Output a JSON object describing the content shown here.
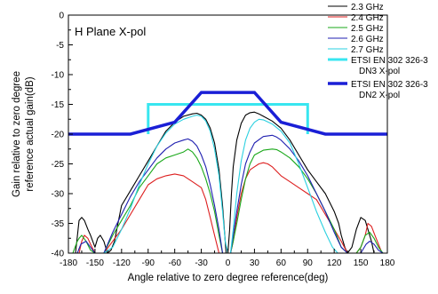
{
  "chart_data": {
    "type": "line",
    "annotation": "H Plane X-pol",
    "xlabel": "Angle relative to zero degree reference(deg)",
    "ylabel_lines": [
      "Gain relative to zero degree",
      "reference actual gain(dB)"
    ],
    "xlim": [
      -180,
      180
    ],
    "ylim": [
      -40,
      0
    ],
    "xticks": [
      -180,
      -150,
      -120,
      -90,
      -60,
      -30,
      0,
      30,
      60,
      90,
      120,
      150,
      180
    ],
    "yticks": [
      0,
      -5,
      -10,
      -15,
      -20,
      -25,
      -30,
      -35,
      -40
    ],
    "grid": false,
    "legend_position": "top-right",
    "series": [
      {
        "name": "2.3 GHz",
        "color": "#000000",
        "x": [
          -180,
          -172,
          -168,
          -165,
          -162,
          -158,
          -155,
          -150,
          -147,
          -144,
          -140,
          -136,
          -132,
          -128,
          -124,
          -120,
          -110,
          -100,
          -90,
          -80,
          -70,
          -60,
          -50,
          -40,
          -35,
          -30,
          -25,
          -20,
          -15,
          -10,
          -6,
          -4,
          -2,
          0,
          2,
          4,
          6,
          10,
          15,
          20,
          25,
          30,
          35,
          40,
          50,
          60,
          70,
          80,
          90,
          100,
          110,
          120,
          125,
          128,
          132,
          135,
          140,
          145,
          150,
          155,
          158,
          162,
          165,
          168,
          172,
          176,
          180
        ],
        "y": [
          -40,
          -40,
          -34.5,
          -34,
          -34.5,
          -36,
          -37,
          -39,
          -37.5,
          -37,
          -38,
          -40,
          -39.5,
          -38,
          -35,
          -32,
          -29.5,
          -27,
          -24.5,
          -22,
          -19.5,
          -18,
          -17,
          -16.6,
          -16.5,
          -16.8,
          -17.5,
          -19,
          -21.5,
          -26,
          -32,
          -36,
          -40,
          -40,
          -36,
          -30,
          -25.5,
          -21,
          -18.2,
          -16.8,
          -16.4,
          -16.3,
          -16.6,
          -17,
          -17.8,
          -19,
          -21,
          -23.5,
          -26,
          -28,
          -30,
          -33,
          -35,
          -37,
          -39,
          -40,
          -39,
          -36,
          -34,
          -34.5,
          -36,
          -38,
          -40,
          -40,
          -40,
          -40,
          -40
        ]
      },
      {
        "name": "2.4 GHz",
        "color": "#dd1f1f",
        "x": [
          -180,
          -168,
          -165,
          -162,
          -158,
          -155,
          -150,
          -145,
          -140,
          -130,
          -120,
          -110,
          -100,
          -90,
          -80,
          -70,
          -60,
          -50,
          -40,
          -30,
          -25,
          -20,
          -15,
          -10,
          -6,
          -3,
          0,
          3,
          6,
          10,
          15,
          20,
          25,
          30,
          35,
          40,
          45,
          50,
          60,
          70,
          80,
          90,
          100,
          110,
          120,
          128,
          135,
          140,
          145,
          150,
          155,
          158,
          162,
          166,
          170,
          174,
          180
        ],
        "y": [
          -40,
          -40,
          -38,
          -37,
          -37.5,
          -38.5,
          -40,
          -40,
          -40,
          -38,
          -36,
          -33.5,
          -31,
          -28.5,
          -27.5,
          -27,
          -26.7,
          -27,
          -28,
          -29,
          -31,
          -34,
          -37,
          -40,
          -40,
          -40,
          -40,
          -40,
          -38,
          -34,
          -30,
          -27.5,
          -26,
          -25.5,
          -25,
          -24.8,
          -25,
          -25.5,
          -27,
          -28,
          -29,
          -30,
          -31,
          -33.5,
          -36,
          -38,
          -40,
          -40,
          -40,
          -39,
          -37,
          -35,
          -35.5,
          -37,
          -38.5,
          -40,
          -40
        ]
      },
      {
        "name": "2.5 GHz",
        "color": "#1aa81a",
        "x": [
          -180,
          -175,
          -170,
          -168,
          -165,
          -160,
          -155,
          -150,
          -140,
          -130,
          -120,
          -110,
          -100,
          -90,
          -80,
          -70,
          -60,
          -50,
          -45,
          -40,
          -35,
          -30,
          -25,
          -20,
          -15,
          -10,
          -6,
          -3,
          0,
          3,
          6,
          10,
          15,
          20,
          25,
          30,
          40,
          50,
          55,
          60,
          70,
          80,
          90,
          100,
          110,
          120,
          128,
          135,
          140,
          145,
          150,
          155,
          160,
          165,
          170,
          175,
          180
        ],
        "y": [
          -40,
          -40,
          -38,
          -37.5,
          -37,
          -38,
          -39.5,
          -40,
          -40,
          -37,
          -34.5,
          -32,
          -29,
          -27,
          -25,
          -24,
          -23.5,
          -23,
          -22.5,
          -23,
          -24,
          -25.5,
          -27.5,
          -30,
          -33,
          -37,
          -40,
          -40,
          -40,
          -40,
          -38,
          -35,
          -31,
          -27.5,
          -25,
          -23.5,
          -22.7,
          -22.5,
          -22.6,
          -23,
          -24,
          -25.5,
          -27.5,
          -30,
          -33,
          -36,
          -39,
          -40,
          -40,
          -40,
          -39,
          -37,
          -36.5,
          -37.5,
          -39,
          -40,
          -40
        ]
      },
      {
        "name": "2.6 GHz",
        "color": "#1f1fb0",
        "x": [
          -180,
          -170,
          -166,
          -160,
          -155,
          -150,
          -140,
          -130,
          -120,
          -110,
          -100,
          -90,
          -80,
          -70,
          -60,
          -50,
          -45,
          -40,
          -35,
          -30,
          -25,
          -20,
          -15,
          -10,
          -6,
          -3,
          0,
          3,
          6,
          10,
          15,
          20,
          25,
          30,
          40,
          50,
          55,
          60,
          70,
          80,
          90,
          100,
          110,
          120,
          128,
          135,
          140,
          150,
          156,
          160,
          165,
          170,
          175,
          180
        ],
        "y": [
          -40,
          -40,
          -38.5,
          -38,
          -39,
          -40,
          -40,
          -36.5,
          -33.5,
          -30.5,
          -28,
          -26,
          -24,
          -22.5,
          -21.5,
          -21,
          -20.8,
          -21.2,
          -22,
          -23.5,
          -25.5,
          -28.5,
          -32,
          -36,
          -40,
          -40,
          -40,
          -40,
          -37,
          -33,
          -28.5,
          -25,
          -23,
          -21.5,
          -20.4,
          -20.2,
          -20.5,
          -21,
          -22.5,
          -24.5,
          -27,
          -30,
          -33,
          -36.5,
          -39,
          -40,
          -40,
          -40,
          -38.5,
          -38,
          -38.5,
          -39.5,
          -40,
          -40
        ]
      },
      {
        "name": "2.7 GHz",
        "color": "#2ad0e0",
        "x": [
          -180,
          -170,
          -160,
          -150,
          -140,
          -130,
          -120,
          -110,
          -100,
          -90,
          -80,
          -70,
          -60,
          -50,
          -40,
          -35,
          -30,
          -25,
          -20,
          -15,
          -10,
          -6,
          -3,
          0,
          3,
          6,
          10,
          15,
          20,
          25,
          30,
          35,
          40,
          50,
          60,
          70,
          80,
          90,
          100,
          110,
          118,
          124,
          130,
          135,
          140,
          150,
          160,
          170,
          180
        ],
        "y": [
          -40,
          -40,
          -40,
          -40,
          -40,
          -39,
          -36,
          -32.5,
          -28.5,
          -25,
          -22,
          -19.8,
          -18.3,
          -17.5,
          -17,
          -16.8,
          -17,
          -17.8,
          -19.5,
          -22.5,
          -27,
          -33,
          -38,
          -40,
          -40,
          -36,
          -30,
          -24.5,
          -21,
          -19,
          -18,
          -17.5,
          -17.6,
          -18.3,
          -19.5,
          -21.5,
          -25,
          -29,
          -33,
          -36.5,
          -39,
          -40,
          -40,
          -40,
          -40,
          -40,
          -40,
          -40,
          -40
        ]
      },
      {
        "name": "ETSI EN 302 326-3 DN3 X-pol",
        "legend_lines": [
          "ETSI EN 302 326-3",
          "DN3 X-pol"
        ],
        "color": "#38e6f0",
        "mask": true,
        "width": 3,
        "x": [
          -90,
          -90,
          90,
          90
        ],
        "y": [
          -20,
          -15,
          -15,
          -20
        ]
      },
      {
        "name": "ETSI EN 302 326-3 DN2 X-pol",
        "legend_lines": [
          "ETSI EN 302 326-3",
          "DN2 X-pol"
        ],
        "color": "#1a1fd6",
        "mask": true,
        "width": 3.5,
        "x": [
          -180,
          -110,
          -60,
          -30,
          30,
          60,
          110,
          180
        ],
        "y": [
          -20,
          -20,
          -18,
          -13,
          -13,
          -18,
          -20,
          -20
        ]
      }
    ]
  }
}
